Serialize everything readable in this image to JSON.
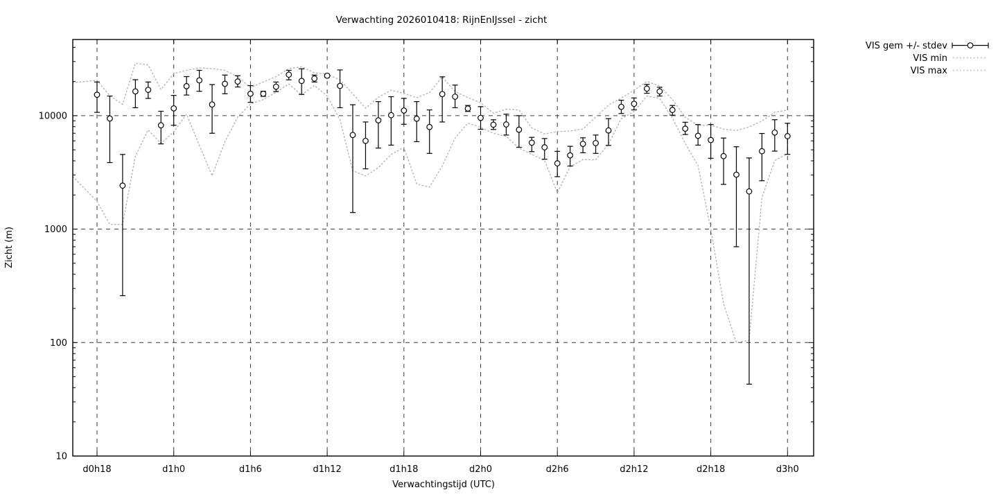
{
  "title": "Verwachting 2026010418: RijnEnIJssel - zicht",
  "axes": {
    "xlabel": "Verwachtingstijd (UTC)",
    "ylabel": "Zicht (m)",
    "y_ticks": [
      "10",
      "100",
      "1000",
      "10000"
    ],
    "x_ticks": [
      "d0h18",
      "d1h0",
      "d1h6",
      "d1h12",
      "d1h18",
      "d2h0",
      "d2h6",
      "d2h12",
      "d2h18",
      "d3h0"
    ]
  },
  "legend": {
    "items": [
      {
        "label": "VIS gem +/- stdev",
        "style": "errorbar"
      },
      {
        "label": "VIS min",
        "style": "dotted"
      },
      {
        "label": "VIS max",
        "style": "dotted"
      }
    ]
  },
  "chart_data": {
    "type": "line",
    "subtype": "errorbars-with-min-max-envelope",
    "title": "Verwachting 2026010418: RijnEnIJssel - zicht",
    "xlabel": "Verwachtingstijd (UTC)",
    "ylabel": "Zicht (m)",
    "y_scale": "log10",
    "ylim": [
      10,
      48000
    ],
    "y_major_ticks": [
      10,
      100,
      1000,
      10000
    ],
    "grid": true,
    "legend_position": "outside-top-right",
    "x_tick_labels": [
      "d0h18",
      "d1h0",
      "d1h6",
      "d1h12",
      "d1h18",
      "d2h0",
      "d2h6",
      "d2h12",
      "d2h18",
      "d3h0"
    ],
    "x_tick_hours": [
      0,
      6,
      12,
      18,
      24,
      30,
      36,
      42,
      48,
      54
    ],
    "x_hours_total": 54,
    "colors": {
      "mean": "#000000",
      "minmax": "#b5b5b5",
      "grid": "#3a3a3a",
      "border": "#000000"
    },
    "series": [
      {
        "name": "VIS gem +/- stdev",
        "style": "errorbar",
        "note": "one point per hour from d0h18 to d3h0; values [mean, mean-stdev, mean+stdev] in metres",
        "points": [
          [
            15300,
            10700,
            19800
          ],
          [
            9440,
            3860,
            14900
          ],
          [
            2420,
            259,
            4550
          ],
          [
            16370,
            11750,
            20750
          ],
          [
            16900,
            14200,
            19800
          ],
          [
            8230,
            5640,
            10940
          ],
          [
            11600,
            8230,
            15080
          ],
          [
            18200,
            15200,
            22100
          ],
          [
            20500,
            16400,
            25100
          ],
          [
            12550,
            7000,
            18800
          ],
          [
            19100,
            15600,
            22800
          ],
          [
            20000,
            17900,
            22500
          ],
          [
            15600,
            13100,
            18400
          ],
          [
            15600,
            14800,
            16400
          ],
          [
            18000,
            16300,
            19800
          ],
          [
            23000,
            20700,
            25100
          ],
          [
            20250,
            15400,
            25900
          ],
          [
            21250,
            19800,
            22800
          ],
          [
            22500,
            21800,
            23200
          ],
          [
            18300,
            11750,
            25300
          ],
          [
            6760,
            1400,
            12480
          ],
          [
            6000,
            3400,
            8800
          ],
          [
            9100,
            5180,
            13300
          ],
          [
            10100,
            5500,
            14700
          ],
          [
            11100,
            8400,
            14200
          ],
          [
            9400,
            5900,
            13300
          ],
          [
            7950,
            4650,
            11240
          ],
          [
            15500,
            8800,
            22000
          ],
          [
            14700,
            11750,
            18600
          ],
          [
            11560,
            10900,
            12300
          ],
          [
            9560,
            7590,
            12000
          ],
          [
            8330,
            7560,
            9200
          ],
          [
            8370,
            6750,
            10300
          ],
          [
            7520,
            5260,
            10000
          ],
          [
            5780,
            4820,
            6440
          ],
          [
            5260,
            4130,
            6290
          ],
          [
            3800,
            2900,
            4850
          ],
          [
            4470,
            3600,
            5370
          ],
          [
            5640,
            4710,
            6380
          ],
          [
            5730,
            4650,
            6750
          ],
          [
            7410,
            5470,
            9420
          ],
          [
            11970,
            10450,
            13670
          ],
          [
            12730,
            11240,
            14330
          ],
          [
            17330,
            15760,
            18870
          ],
          [
            16370,
            14900,
            17800
          ],
          [
            11230,
            10100,
            12300
          ],
          [
            7680,
            6820,
            8750
          ],
          [
            6650,
            5500,
            8350
          ],
          [
            6100,
            4210,
            8350
          ],
          [
            4400,
            2480,
            6350
          ],
          [
            3020,
            700,
            5320
          ],
          [
            2150,
            43,
            4240
          ],
          [
            4860,
            2670,
            6970
          ],
          [
            7100,
            4870,
            9210
          ],
          [
            6600,
            4560,
            8560
          ]
        ]
      },
      {
        "name": "VIS min",
        "style": "dotted",
        "values": [
          1760,
          1100,
          1100,
          4400,
          7500,
          5700,
          7200,
          10300,
          5500,
          2950,
          5900,
          9700,
          12700,
          13850,
          16100,
          19000,
          15200,
          18500,
          14900,
          9200,
          3270,
          2940,
          3480,
          4540,
          5260,
          2500,
          2350,
          3600,
          6350,
          8600,
          7900,
          6980,
          6580,
          5180,
          4560,
          4020,
          2100,
          3540,
          4100,
          4080,
          5620,
          9400,
          10900,
          14900,
          14200,
          9500,
          5700,
          3630,
          1000,
          220,
          100,
          105,
          1900,
          4020,
          4640
        ],
        "edge_value_at_left_frame": 2900
      },
      {
        "name": "VIS max",
        "style": "dotted",
        "values": [
          20500,
          15000,
          12600,
          29000,
          28000,
          17000,
          23500,
          25100,
          26400,
          26000,
          25100,
          22000,
          17700,
          19800,
          22100,
          26000,
          27000,
          23900,
          23200,
          20700,
          15600,
          11650,
          14500,
          16800,
          15700,
          14400,
          16000,
          22000,
          16300,
          14450,
          13000,
          10500,
          11400,
          11200,
          7800,
          6900,
          7250,
          7320,
          7620,
          9720,
          12400,
          14300,
          16750,
          20000,
          18300,
          13850,
          9700,
          8200,
          8270,
          7600,
          7400,
          7950,
          9000,
          10700,
          11200
        ],
        "edge_value_at_left_frame": 19500
      }
    ]
  }
}
